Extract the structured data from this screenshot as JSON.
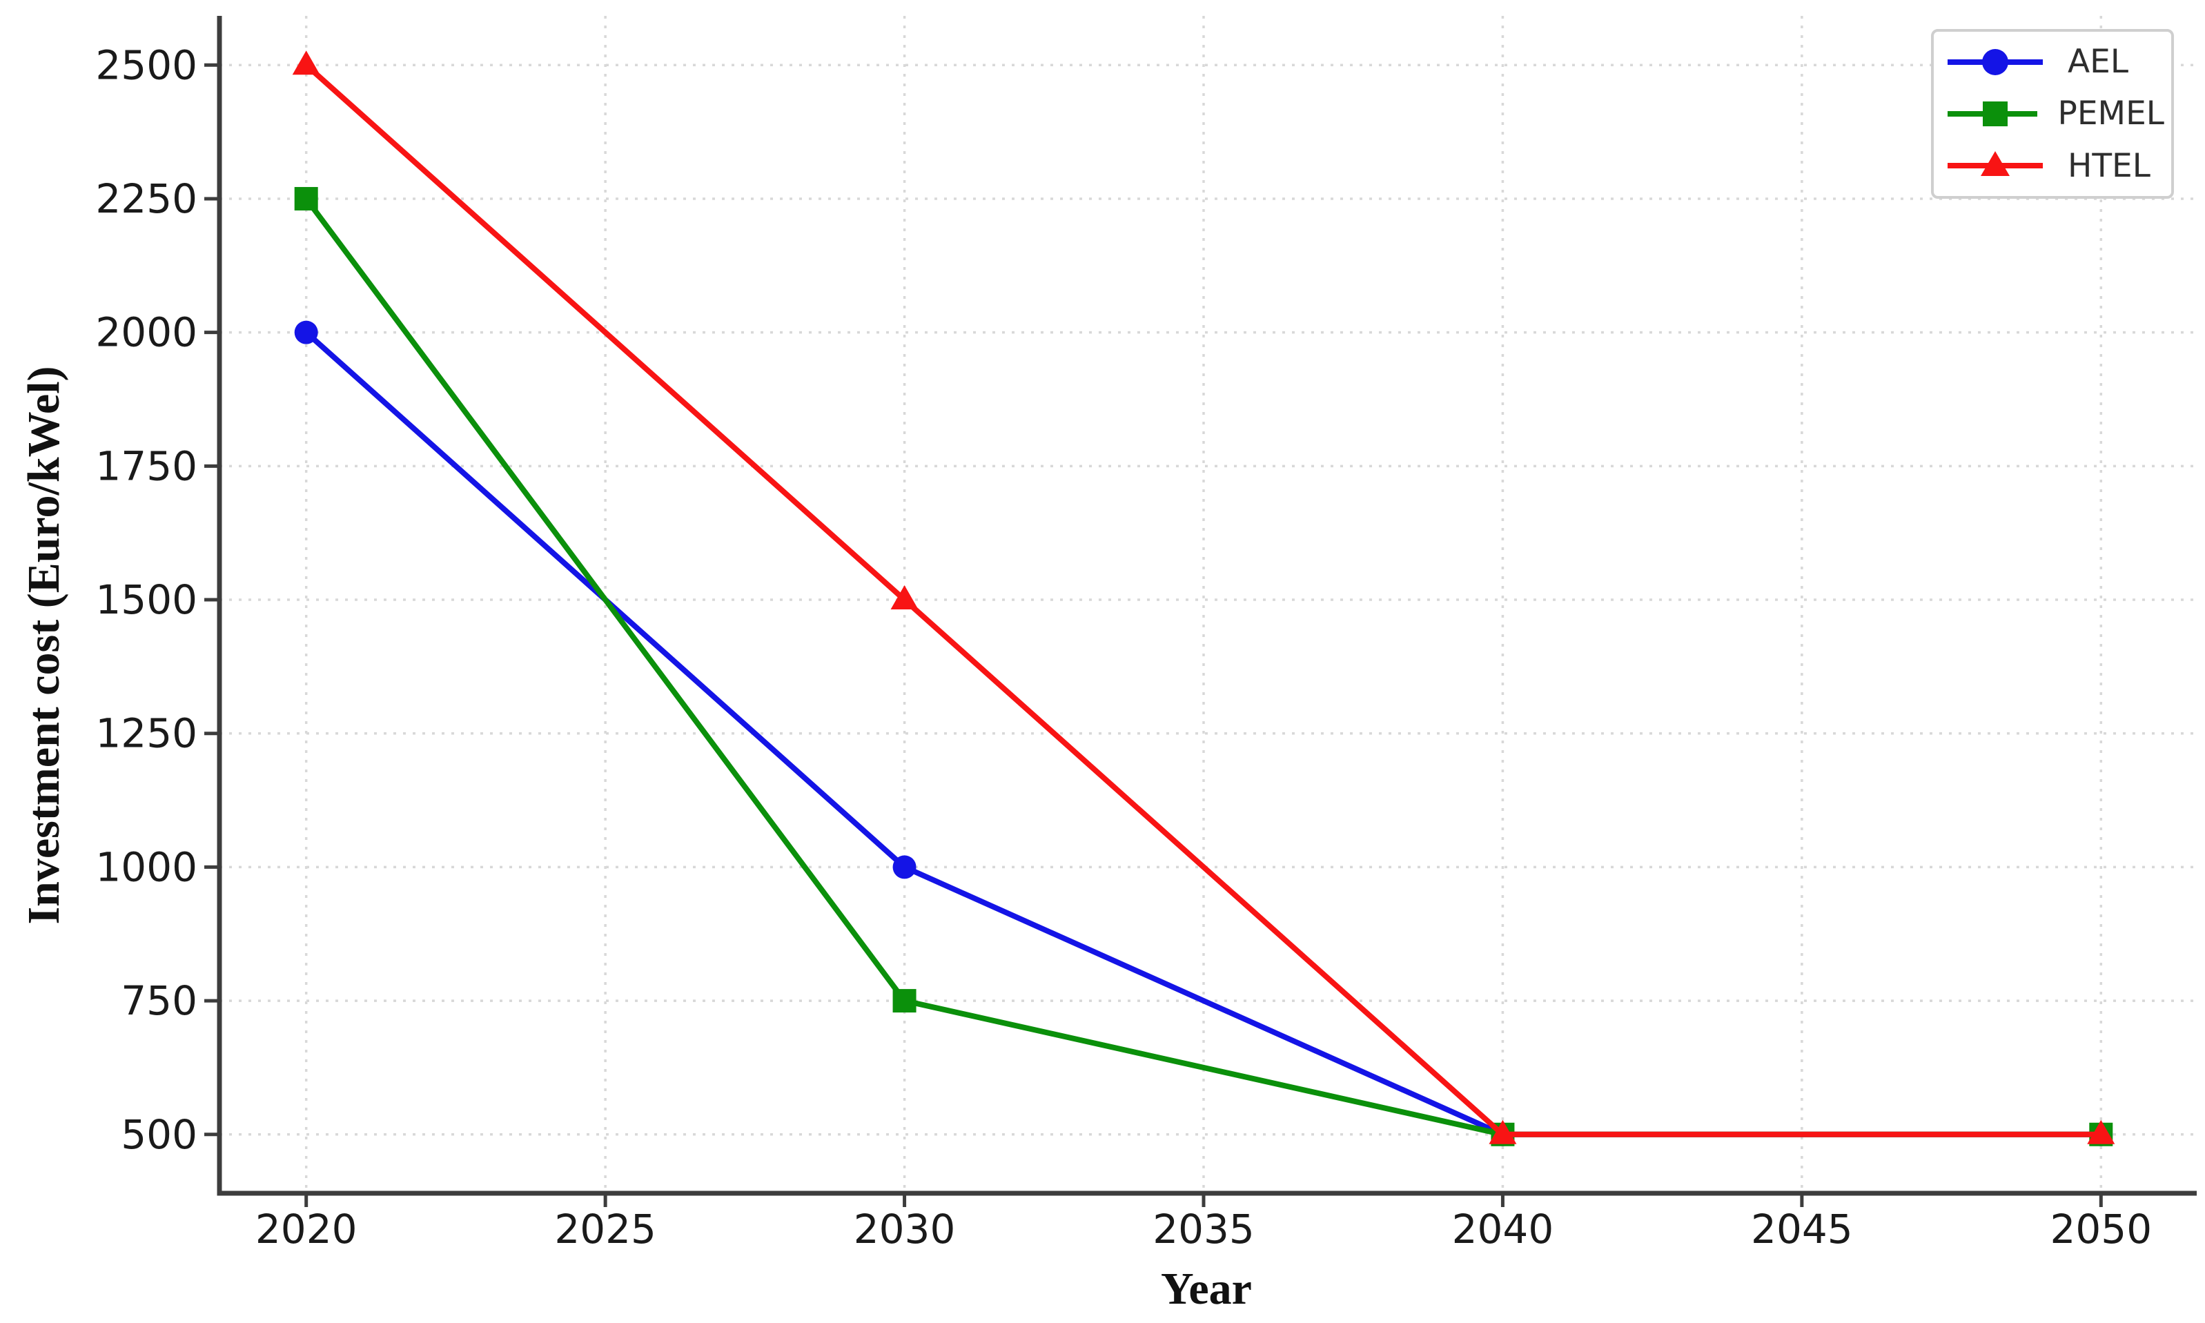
{
  "figure": {
    "background": "#ffffff"
  },
  "axes": {
    "x_label": "Year",
    "y_label": "Investment cost (Euro/kWel)"
  },
  "chart_data": {
    "type": "line",
    "title": "",
    "xlabel": "Year",
    "ylabel": "Investment cost (Euro/kWel)",
    "x": [
      2020,
      2030,
      2040,
      2050
    ],
    "series": [
      {
        "name": "AEL",
        "color": "#1414e6",
        "marker": "circle",
        "values": [
          2000,
          1000,
          500,
          500
        ]
      },
      {
        "name": "PEMEL",
        "color": "#0b900b",
        "marker": "square",
        "values": [
          2250,
          750,
          500,
          500
        ]
      },
      {
        "name": "HTEL",
        "color": "#f81414",
        "marker": "triangle",
        "values": [
          2500,
          1500,
          500,
          500
        ]
      }
    ],
    "xticks": [
      2020,
      2025,
      2030,
      2035,
      2040,
      2045,
      2050
    ],
    "yticks": [
      500,
      750,
      1000,
      1250,
      1500,
      1750,
      2000,
      2250,
      2500
    ],
    "xlim": [
      2018.55,
      2051.6
    ],
    "ylim": [
      390,
      2592
    ],
    "grid": true,
    "grid_style": "dotted",
    "legend_position": "upper right"
  },
  "style": {
    "spine_color": "#3d3d3d",
    "grid_color": "#d8d8d8",
    "tick_label_color": "#1a1a1a",
    "legend_border_color": "#cfcfcf",
    "legend_text_color": "#2e2e2e"
  }
}
